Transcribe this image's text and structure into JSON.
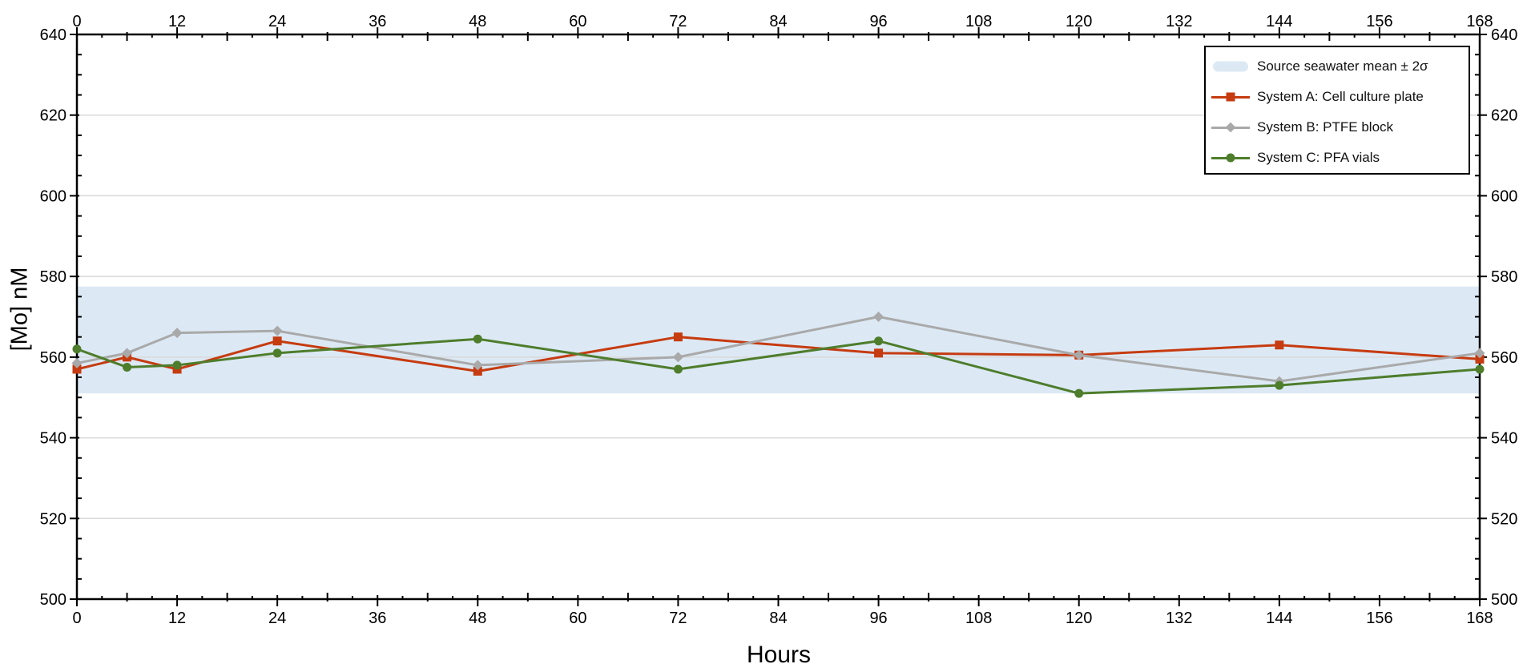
{
  "chart_data": {
    "type": "line",
    "title": "",
    "xlabel": "Hours",
    "ylabel": "[Mo] nM",
    "xlim": [
      0,
      168
    ],
    "ylim": [
      500,
      640
    ],
    "x_major_ticks": [
      0,
      12,
      24,
      36,
      48,
      60,
      72,
      84,
      96,
      108,
      120,
      132,
      144,
      156,
      168
    ],
    "x_medium_step": 6,
    "x_minor_step": 3,
    "y_major_ticks": [
      500,
      520,
      540,
      560,
      580,
      600,
      620,
      640
    ],
    "y_minor_step": 5,
    "grid": "horizontal-major-only",
    "grid_color": "#d9d9d9",
    "axis_color": "#000000",
    "legend_position": "top-right",
    "band": {
      "label": "Source seawater mean ± 2σ",
      "low": 551,
      "high": 577.5,
      "color": "#dce9f5"
    },
    "x": [
      0,
      6,
      12,
      24,
      48,
      72,
      96,
      120,
      144,
      168
    ],
    "series": [
      {
        "name": "System A: Cell culture plate",
        "color": "#c63b10",
        "marker": "square",
        "values": [
          557,
          560,
          557,
          564,
          556.5,
          565,
          561,
          560.5,
          563,
          559.5
        ]
      },
      {
        "name": "System B: PTFE block",
        "color": "#a9a9a9",
        "marker": "diamond",
        "values": [
          558.5,
          561,
          566,
          566.5,
          558,
          560,
          570,
          560.5,
          554,
          561
        ]
      },
      {
        "name": "System C: PFA vials",
        "color": "#4e7d2c",
        "marker": "circle",
        "values": [
          562,
          557.5,
          558,
          561,
          564.5,
          557,
          564,
          551,
          553,
          557
        ]
      }
    ]
  }
}
